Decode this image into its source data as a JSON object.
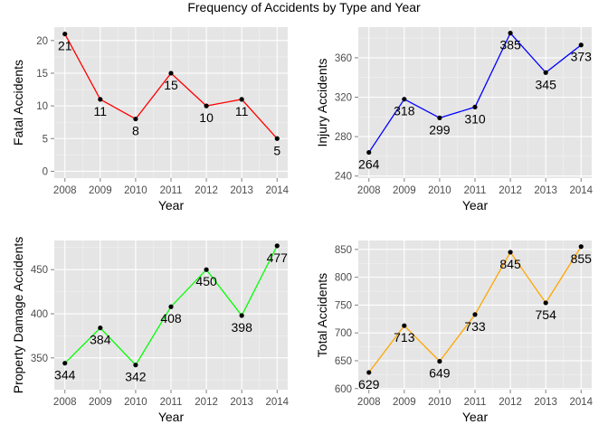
{
  "title": "Frequency of Accidents by Type and Year",
  "chart_data": [
    {
      "type": "line",
      "title": "",
      "xlabel": "Year",
      "ylabel": "Fatal Accidents",
      "x": [
        2008,
        2009,
        2010,
        2011,
        2012,
        2013,
        2014
      ],
      "values": [
        21,
        11,
        8,
        15,
        10,
        11,
        5
      ],
      "yticks": [
        0,
        5,
        10,
        15,
        20
      ],
      "ylim": [
        -1.05,
        22.05
      ],
      "xlim": [
        2007.7,
        2014.3
      ],
      "color": "#ff0000",
      "grid": true,
      "label_offsets": [
        "below",
        "below",
        "below",
        "below",
        "below",
        "below",
        "below"
      ]
    },
    {
      "type": "line",
      "title": "",
      "xlabel": "Year",
      "ylabel": "Injury Accidents",
      "x": [
        2008,
        2009,
        2010,
        2011,
        2012,
        2013,
        2014
      ],
      "values": [
        264,
        318,
        299,
        310,
        385,
        345,
        373
      ],
      "yticks": [
        240,
        280,
        320,
        360
      ],
      "ylim": [
        237.9,
        391.1
      ],
      "xlim": [
        2007.7,
        2014.3
      ],
      "color": "#0000ff",
      "grid": true,
      "label_offsets": [
        "below",
        "below",
        "below",
        "below",
        "below",
        "below",
        "below"
      ]
    },
    {
      "type": "line",
      "title": "",
      "xlabel": "Year",
      "ylabel": "Property Damage Accidents",
      "x": [
        2008,
        2009,
        2010,
        2011,
        2012,
        2013,
        2014
      ],
      "values": [
        344,
        384,
        342,
        408,
        450,
        398,
        477
      ],
      "yticks": [
        350,
        400,
        450
      ],
      "ylim": [
        314,
        483
      ],
      "xlim": [
        2007.7,
        2014.3
      ],
      "color": "#00ff00",
      "grid": true,
      "label_offsets": [
        "below",
        "below",
        "below",
        "below",
        "below",
        "below",
        "below"
      ]
    },
    {
      "type": "line",
      "title": "",
      "xlabel": "Year",
      "ylabel": "Total Accidents",
      "x": [
        2008,
        2009,
        2010,
        2011,
        2012,
        2013,
        2014
      ],
      "values": [
        629,
        713,
        649,
        733,
        845,
        754,
        855
      ],
      "yticks": [
        600,
        650,
        700,
        750,
        800,
        850
      ],
      "ylim": [
        598,
        866
      ],
      "xlim": [
        2007.7,
        2014.3
      ],
      "color": "#ffa500",
      "grid": true,
      "label_offsets": [
        "below",
        "below",
        "below",
        "below",
        "below",
        "below",
        "below"
      ]
    }
  ]
}
